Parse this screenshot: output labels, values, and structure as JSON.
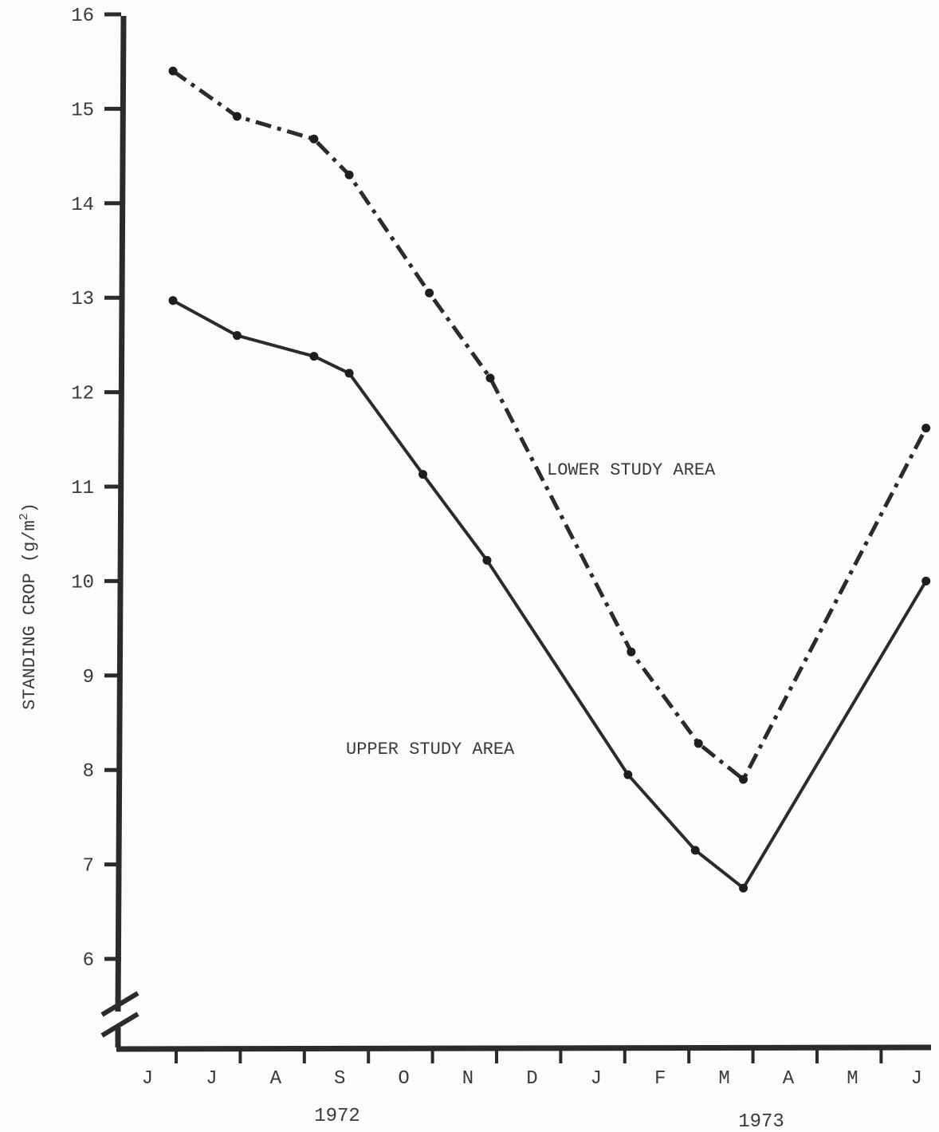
{
  "chart_data": {
    "type": "line",
    "xlabel": "",
    "ylabel": "STANDING CROP (g/m",
    "ylabel_superscript": "2",
    "ylabel_suffix": ")",
    "ylim": [
      6,
      16
    ],
    "yticks": [
      "6",
      "7",
      "8",
      "9",
      "10",
      "11",
      "12",
      "13",
      "14",
      "15",
      "16"
    ],
    "y_axis_break": true,
    "month_labels": [
      "J",
      "J",
      "A",
      "S",
      "O",
      "N",
      "D",
      "J",
      "F",
      "M",
      "A",
      "M",
      "J"
    ],
    "year_labels": [
      "1972",
      "1973"
    ],
    "grid": false,
    "series": [
      {
        "name": "LOWER STUDY AREA",
        "line_style": "dash-dot",
        "points": [
          {
            "x": 0.4,
            "y": 15.4
          },
          {
            "x": 1.4,
            "y": 14.92
          },
          {
            "x": 2.6,
            "y": 14.68
          },
          {
            "x": 3.15,
            "y": 14.3
          },
          {
            "x": 4.4,
            "y": 13.05
          },
          {
            "x": 5.35,
            "y": 12.15
          },
          {
            "x": 7.55,
            "y": 9.25
          },
          {
            "x": 8.6,
            "y": 8.28
          },
          {
            "x": 9.3,
            "y": 7.9
          },
          {
            "x": 12.15,
            "y": 11.62
          }
        ]
      },
      {
        "name": "UPPER STUDY AREA",
        "line_style": "solid",
        "points": [
          {
            "x": 0.4,
            "y": 12.97
          },
          {
            "x": 1.4,
            "y": 12.6
          },
          {
            "x": 2.6,
            "y": 12.38
          },
          {
            "x": 3.15,
            "y": 12.2
          },
          {
            "x": 4.3,
            "y": 11.13
          },
          {
            "x": 5.3,
            "y": 10.22
          },
          {
            "x": 7.5,
            "y": 7.95
          },
          {
            "x": 8.55,
            "y": 7.15
          },
          {
            "x": 9.3,
            "y": 6.75
          },
          {
            "x": 12.15,
            "y": 10.0
          }
        ]
      }
    ]
  }
}
